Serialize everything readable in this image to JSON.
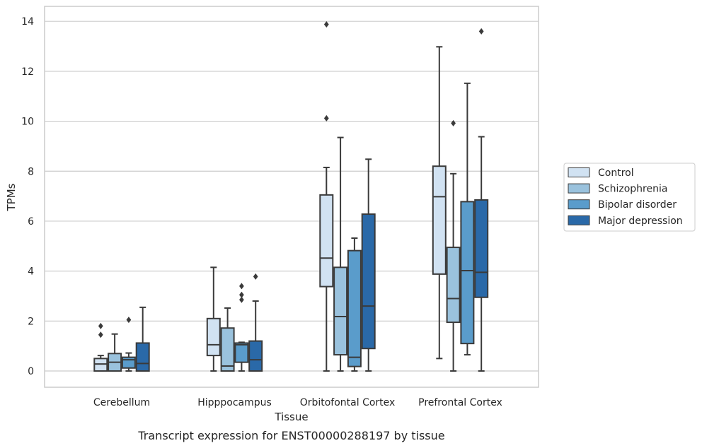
{
  "chart_data": {
    "type": "box",
    "title": "Transcript expression for ENST00000288197 by tissue",
    "xlabel": "Tissue",
    "ylabel": "TPMs",
    "ylim": [
      -0.65,
      14.6
    ],
    "yticks": [
      0,
      2,
      4,
      6,
      8,
      10,
      12,
      14
    ],
    "grid": true,
    "legend_position": "right",
    "categories": [
      "Cerebellum",
      "Hipppocampus",
      "Orbitofontal Cortex",
      "Prefrontal Cortex"
    ],
    "series": [
      {
        "name": "Control",
        "color": "#d1e2f2",
        "boxes": [
          {
            "whislo": 0.0,
            "q1": 0.0,
            "med": 0.28,
            "q3": 0.5,
            "whishi": 0.62,
            "fliers": [
              1.45,
              1.8
            ]
          },
          {
            "whislo": 0.0,
            "q1": 0.62,
            "med": 1.05,
            "q3": 2.1,
            "whishi": 4.15,
            "fliers": []
          },
          {
            "whislo": 0.0,
            "q1": 3.38,
            "med": 4.52,
            "q3": 7.05,
            "whishi": 8.15,
            "fliers": [
              10.12,
              13.88
            ]
          },
          {
            "whislo": 0.5,
            "q1": 3.88,
            "med": 6.98,
            "q3": 8.2,
            "whishi": 12.98,
            "fliers": []
          }
        ]
      },
      {
        "name": "Schizophrenia",
        "color": "#9ac2dd",
        "boxes": [
          {
            "whislo": 0.0,
            "q1": 0.0,
            "med": 0.35,
            "q3": 0.7,
            "whishi": 1.48,
            "fliers": []
          },
          {
            "whislo": 0.0,
            "q1": 0.0,
            "med": 0.2,
            "q3": 1.72,
            "whishi": 2.52,
            "fliers": []
          },
          {
            "whislo": 0.0,
            "q1": 0.65,
            "med": 2.18,
            "q3": 4.15,
            "whishi": 9.35,
            "fliers": []
          },
          {
            "whislo": 0.0,
            "q1": 1.95,
            "med": 2.9,
            "q3": 4.95,
            "whishi": 7.9,
            "fliers": [
              9.92
            ]
          }
        ]
      },
      {
        "name": "Bipolar disorder",
        "color": "#5a9ccb",
        "boxes": [
          {
            "whislo": 0.0,
            "q1": 0.12,
            "med": 0.45,
            "q3": 0.55,
            "whishi": 0.72,
            "fliers": [
              2.05
            ]
          },
          {
            "whislo": 0.0,
            "q1": 0.35,
            "med": 1.05,
            "q3": 1.12,
            "whishi": 1.15,
            "fliers": [
              2.85,
              3.05,
              3.4
            ]
          },
          {
            "whislo": 0.0,
            "q1": 0.18,
            "med": 0.55,
            "q3": 4.82,
            "whishi": 5.32,
            "fliers": []
          },
          {
            "whislo": 0.65,
            "q1": 1.1,
            "med": 4.02,
            "q3": 6.78,
            "whishi": 11.52,
            "fliers": []
          }
        ]
      },
      {
        "name": "Major depression",
        "color": "#2a69a8",
        "boxes": [
          {
            "whislo": 0.0,
            "q1": 0.0,
            "med": 0.3,
            "q3": 1.12,
            "whishi": 2.55,
            "fliers": []
          },
          {
            "whislo": 0.0,
            "q1": 0.0,
            "med": 0.45,
            "q3": 1.2,
            "whishi": 2.8,
            "fliers": [
              3.78
            ]
          },
          {
            "whislo": 0.0,
            "q1": 0.9,
            "med": 2.6,
            "q3": 6.28,
            "whishi": 8.48,
            "fliers": []
          },
          {
            "whislo": 0.0,
            "q1": 2.95,
            "med": 3.95,
            "q3": 6.85,
            "whishi": 9.38,
            "fliers": [
              13.6
            ]
          }
        ]
      }
    ]
  }
}
